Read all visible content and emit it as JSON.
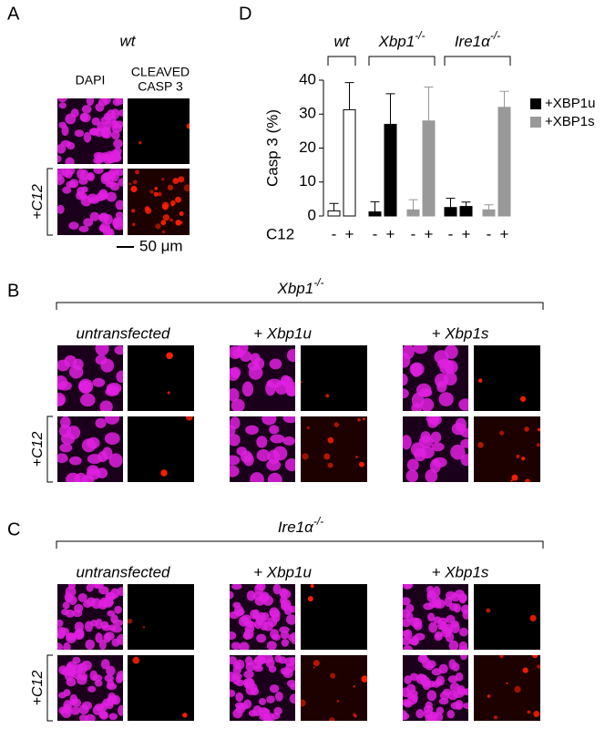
{
  "panel_a": {
    "label": "A",
    "title": "wt",
    "dapi": "DAPI",
    "casp_line1": "CLEAVED",
    "casp_line2": "CASP 3",
    "row_label": "+C12",
    "scale_bar": "50 μm"
  },
  "chart_data": {
    "type": "bar",
    "panel_label": "D",
    "ylabel": "Casp 3 (%)",
    "xlabel": "C12",
    "categories": [
      "-",
      "+"
    ],
    "ylim": [
      0,
      40
    ],
    "yticks": [
      0,
      10,
      20,
      30,
      40
    ],
    "groups": [
      {
        "name": "wt",
        "series": [
          {
            "color": "#ffffff",
            "values": [
              1.5,
              31.3
            ],
            "errors": [
              2.2,
              8
            ]
          }
        ]
      },
      {
        "name": "Xbp1",
        "sup": "-/-",
        "series": [
          {
            "color": "#000000",
            "values": [
              1.2,
              27
            ],
            "errors": [
              3,
              9
            ]
          },
          {
            "color": "#999999",
            "values": [
              1.8,
              28
            ],
            "errors": [
              3,
              10
            ]
          }
        ]
      },
      {
        "name": "Ire1α",
        "sup": "-/-",
        "series": [
          {
            "color": "#000000",
            "values": [
              2.5,
              2.8
            ],
            "errors": [
              2.7,
              1.3
            ]
          },
          {
            "color": "#999999",
            "values": [
              1.8,
              32
            ],
            "errors": [
              1.5,
              4.7
            ]
          }
        ]
      }
    ],
    "legend": [
      {
        "name": "+XBP1u",
        "color": "#000000"
      },
      {
        "name": "+XBP1s",
        "color": "#999999"
      }
    ]
  },
  "panel_b": {
    "label": "B",
    "title": "Xbp1",
    "title_sup": "-/-",
    "columns": [
      "untransfected",
      "+ Xbp1u",
      "+ Xbp1s"
    ],
    "row_label": "+C12"
  },
  "panel_c": {
    "label": "C",
    "title": "Ire1α",
    "title_sup": "-/-",
    "columns": [
      "untransfected",
      "+ Xbp1u",
      "+ Xbp1s"
    ],
    "row_label": "+C12"
  }
}
